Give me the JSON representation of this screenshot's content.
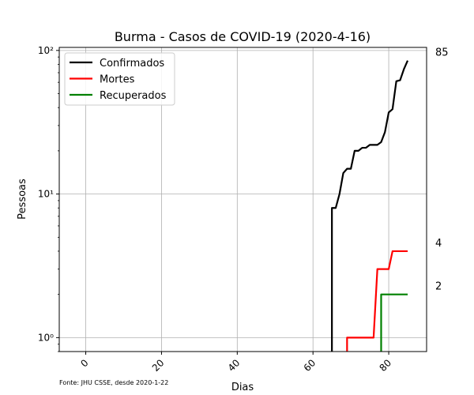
{
  "chart_data": {
    "type": "line",
    "title": "Burma - Casos de COVID-19 (2020-4-16)",
    "xlabel": "Dias",
    "ylabel": "Pessoas",
    "xlim": [
      -7,
      90
    ],
    "ylim": [
      0.8,
      105
    ],
    "yscale": "log",
    "xticks": [
      0,
      20,
      40,
      60,
      80
    ],
    "yticks": [
      {
        "value": 1,
        "label": "10⁰"
      },
      {
        "value": 10,
        "label": "10¹"
      },
      {
        "value": 100,
        "label": "10²"
      }
    ],
    "grid": true,
    "legend_position": "top-left",
    "source_note": "Fonte: JHU CSSE, desde 2020-1-22",
    "series": [
      {
        "name": "Confirmados",
        "color": "#000000",
        "end_label": "85",
        "points": [
          [
            65,
            0.5
          ],
          [
            65,
            8
          ],
          [
            66,
            8
          ],
          [
            67,
            10
          ],
          [
            68,
            14
          ],
          [
            69,
            15
          ],
          [
            70,
            15
          ],
          [
            71,
            20
          ],
          [
            72,
            20
          ],
          [
            73,
            21
          ],
          [
            74,
            21
          ],
          [
            75,
            22
          ],
          [
            76,
            22
          ],
          [
            77,
            22
          ],
          [
            78,
            23
          ],
          [
            79,
            27
          ],
          [
            80,
            37
          ],
          [
            81,
            39
          ],
          [
            82,
            61
          ],
          [
            83,
            62
          ],
          [
            84,
            74
          ],
          [
            85,
            85
          ]
        ]
      },
      {
        "name": "Mortes",
        "color": "#ff0000",
        "end_label": "4",
        "points": [
          [
            69,
            0.5
          ],
          [
            69,
            1
          ],
          [
            70,
            1
          ],
          [
            71,
            1
          ],
          [
            72,
            1
          ],
          [
            73,
            1
          ],
          [
            74,
            1
          ],
          [
            75,
            1
          ],
          [
            76,
            1
          ],
          [
            77,
            3
          ],
          [
            78,
            3
          ],
          [
            79,
            3
          ],
          [
            80,
            3
          ],
          [
            81,
            4
          ],
          [
            82,
            4
          ],
          [
            83,
            4
          ],
          [
            84,
            4
          ],
          [
            85,
            4
          ]
        ]
      },
      {
        "name": "Recuperados",
        "color": "#008000",
        "end_label": "2",
        "points": [
          [
            78,
            0.5
          ],
          [
            78,
            2
          ],
          [
            79,
            2
          ],
          [
            80,
            2
          ],
          [
            81,
            2
          ],
          [
            82,
            2
          ],
          [
            83,
            2
          ],
          [
            84,
            2
          ],
          [
            85,
            2
          ]
        ]
      }
    ]
  }
}
